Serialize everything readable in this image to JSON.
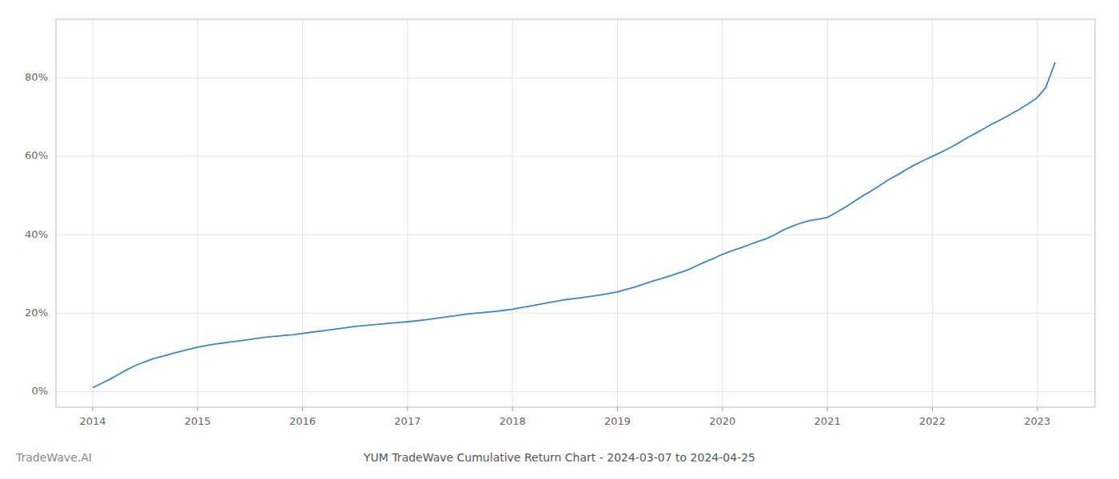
{
  "chart_data": {
    "type": "line",
    "title": "YUM TradeWave Cumulative Return Chart - 2024-03-07 to 2024-04-25",
    "annotations": [
      "TradeWave.AI"
    ],
    "x": [
      2014.0,
      2014.08,
      2014.17,
      2014.25,
      2014.33,
      2014.42,
      2014.5,
      2014.58,
      2014.67,
      2014.75,
      2014.83,
      2014.92,
      2015.0,
      2015.08,
      2015.17,
      2015.25,
      2015.33,
      2015.42,
      2015.5,
      2015.58,
      2015.67,
      2015.75,
      2015.83,
      2015.92,
      2016.0,
      2016.08,
      2016.17,
      2016.25,
      2016.33,
      2016.42,
      2016.5,
      2016.58,
      2016.67,
      2016.75,
      2016.83,
      2016.92,
      2017.0,
      2017.08,
      2017.17,
      2017.25,
      2017.33,
      2017.42,
      2017.5,
      2017.58,
      2017.67,
      2017.75,
      2017.83,
      2017.92,
      2018.0,
      2018.08,
      2018.17,
      2018.25,
      2018.33,
      2018.42,
      2018.5,
      2018.58,
      2018.67,
      2018.75,
      2018.83,
      2018.92,
      2019.0,
      2019.08,
      2019.17,
      2019.25,
      2019.33,
      2019.42,
      2019.5,
      2019.58,
      2019.67,
      2019.75,
      2019.83,
      2019.92,
      2020.0,
      2020.08,
      2020.17,
      2020.25,
      2020.33,
      2020.42,
      2020.5,
      2020.58,
      2020.67,
      2020.75,
      2020.83,
      2020.92,
      2021.0,
      2021.08,
      2021.17,
      2021.25,
      2021.33,
      2021.42,
      2021.5,
      2021.58,
      2021.67,
      2021.75,
      2021.83,
      2021.92,
      2022.0,
      2022.08,
      2022.17,
      2022.25,
      2022.33,
      2022.42,
      2022.5,
      2022.58,
      2022.67,
      2022.75,
      2022.83,
      2022.92,
      2023.0,
      2023.08,
      2023.17
    ],
    "values": [
      0.01,
      0.02,
      0.032,
      0.044,
      0.056,
      0.068,
      0.076,
      0.084,
      0.09,
      0.096,
      0.102,
      0.108,
      0.113,
      0.117,
      0.121,
      0.124,
      0.127,
      0.13,
      0.133,
      0.136,
      0.139,
      0.141,
      0.143,
      0.145,
      0.148,
      0.151,
      0.154,
      0.157,
      0.16,
      0.163,
      0.166,
      0.168,
      0.17,
      0.172,
      0.174,
      0.176,
      0.178,
      0.18,
      0.183,
      0.186,
      0.189,
      0.192,
      0.195,
      0.198,
      0.2,
      0.202,
      0.204,
      0.207,
      0.21,
      0.214,
      0.218,
      0.222,
      0.226,
      0.23,
      0.234,
      0.237,
      0.24,
      0.243,
      0.246,
      0.25,
      0.254,
      0.26,
      0.267,
      0.274,
      0.281,
      0.288,
      0.295,
      0.302,
      0.31,
      0.32,
      0.33,
      0.34,
      0.35,
      0.358,
      0.366,
      0.374,
      0.382,
      0.39,
      0.4,
      0.412,
      0.422,
      0.43,
      0.436,
      0.44,
      0.444,
      0.456,
      0.47,
      0.484,
      0.498,
      0.512,
      0.526,
      0.54,
      0.553,
      0.566,
      0.578,
      0.59,
      0.6,
      0.61,
      0.622,
      0.634,
      0.647,
      0.66,
      0.672,
      0.684,
      0.696,
      0.708,
      0.72,
      0.735,
      0.75,
      0.775,
      0.84
    ],
    "color": "#3a8abf",
    "xlim": [
      2013.65,
      2023.55
    ],
    "ylim": [
      -0.04,
      0.95
    ],
    "xticks": [
      2014,
      2015,
      2016,
      2017,
      2018,
      2019,
      2020,
      2021,
      2022,
      2023
    ],
    "yticks": [
      {
        "value": 0,
        "label": "0%"
      },
      {
        "value": 0.2,
        "label": "20%"
      },
      {
        "value": 0.4,
        "label": "40%"
      },
      {
        "value": 0.6,
        "label": "60%"
      },
      {
        "value": 0.8,
        "label": "80%"
      }
    ],
    "grid": true
  }
}
